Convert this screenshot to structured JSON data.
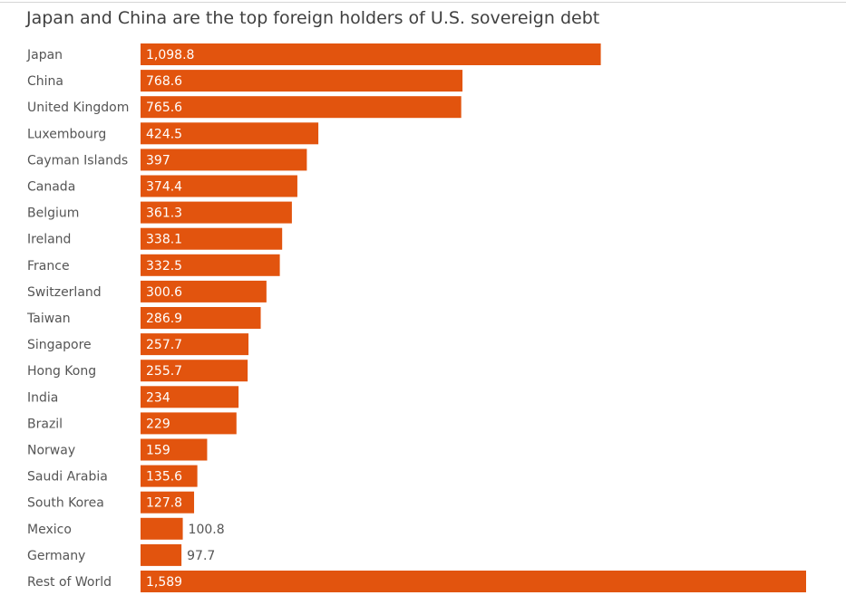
{
  "accent_color": "#e2540e",
  "chart_data": {
    "type": "bar",
    "orientation": "horizontal",
    "title": "Japan and China are the top foreign holders of U.S. sovereign debt",
    "categories": [
      "Japan",
      "China",
      "United Kingdom",
      "Luxembourg",
      "Cayman Islands",
      "Canada",
      "Belgium",
      "Ireland",
      "France",
      "Switzerland",
      "Taiwan",
      "Singapore",
      "Hong Kong",
      "India",
      "Brazil",
      "Norway",
      "Saudi Arabia",
      "South Korea",
      "Mexico",
      "Germany",
      "Rest of World"
    ],
    "values": [
      1098.8,
      768.6,
      765.6,
      424.5,
      397,
      374.4,
      361.3,
      338.1,
      332.5,
      300.6,
      286.9,
      257.7,
      255.7,
      234,
      229,
      159,
      135.6,
      127.8,
      100.8,
      97.7,
      1589
    ],
    "value_labels": [
      "1,098.8",
      "768.6",
      "765.6",
      "424.5",
      "397",
      "374.4",
      "361.3",
      "338.1",
      "332.5",
      "300.6",
      "286.9",
      "257.7",
      "255.7",
      "234",
      "229",
      "159",
      "135.6",
      "127.8",
      "100.8",
      "97.7",
      "1,589"
    ],
    "xlim": [
      0,
      1589
    ],
    "grid": false,
    "legend": "none"
  }
}
